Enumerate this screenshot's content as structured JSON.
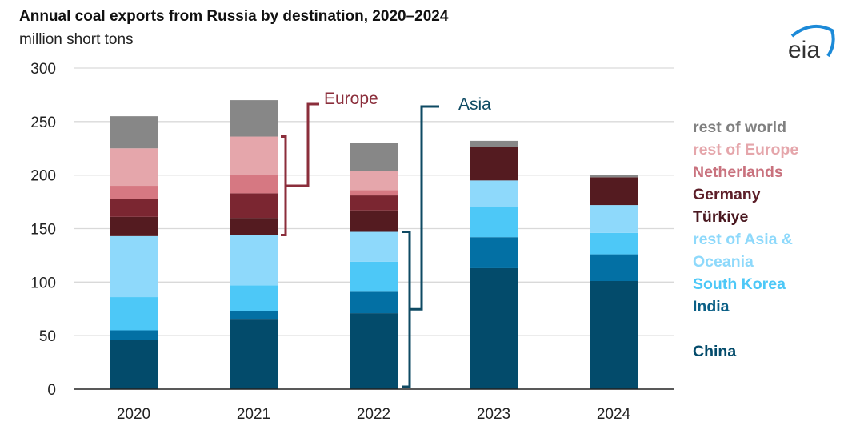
{
  "header": {
    "title": "Annual coal exports from Russia by destination, 2020–2024",
    "subtitle": "million short tons",
    "logo_text": "eia"
  },
  "chart_data": {
    "type": "bar",
    "stacked": true,
    "title": "Annual coal exports from Russia by destination, 2020–2024",
    "ylabel": "million short tons",
    "ylim": [
      0,
      300
    ],
    "yticks": [
      0,
      50,
      100,
      150,
      200,
      250,
      300
    ],
    "grid": true,
    "legend_placement": "right",
    "categories": [
      "2020",
      "2021",
      "2022",
      "2023",
      "2024"
    ],
    "series": [
      {
        "name": "China",
        "color": "#034b6b",
        "values": [
          46,
          65,
          71,
          113,
          101
        ]
      },
      {
        "name": "India",
        "color": "#0370a4",
        "values": [
          9,
          8,
          20,
          29,
          25
        ]
      },
      {
        "name": "South Korea",
        "color": "#4dc8f7",
        "values": [
          31,
          24,
          28,
          28,
          20
        ]
      },
      {
        "name": "rest of Asia & Oceania",
        "color": "#8ed9fb",
        "values": [
          57,
          47,
          28,
          25,
          26
        ]
      },
      {
        "name": "Türkiye",
        "color": "#541b20",
        "values": [
          18,
          16,
          20,
          31,
          26
        ]
      },
      {
        "name": "Germany",
        "color": "#7b2631",
        "values": [
          17,
          23,
          14,
          0,
          0
        ]
      },
      {
        "name": "Netherlands",
        "color": "#d67882",
        "values": [
          12,
          17,
          5,
          0,
          0
        ]
      },
      {
        "name": "rest of Europe",
        "color": "#e5a6ab",
        "values": [
          35,
          36,
          18,
          0,
          0
        ]
      },
      {
        "name": "rest of world",
        "color": "#878787",
        "values": [
          30,
          34,
          26,
          6,
          2
        ]
      }
    ],
    "legend": [
      {
        "label": "rest of world",
        "color": "#808080"
      },
      {
        "label": "rest of Europe",
        "color": "#e5a6ab"
      },
      {
        "label": "Netherlands",
        "color": "#c9727e"
      },
      {
        "label": "Germany",
        "color": "#5c1e28"
      },
      {
        "label": "Türkiye",
        "color": "#4a1820"
      },
      {
        "label": "rest of Asia &",
        "color": "#8ed9fb"
      },
      {
        "label": "Oceania",
        "color": "#8ed9fb"
      },
      {
        "label": "South Korea",
        "color": "#4dc8f7"
      },
      {
        "label": "India",
        "color": "#0a5f86"
      },
      {
        "label": "",
        "color": "#fff"
      },
      {
        "label": "China",
        "color": "#034b6b"
      }
    ],
    "annotations": [
      {
        "text": "Europe",
        "color": "#8b2e3b"
      },
      {
        "text": "Asia",
        "color": "#0e4a63"
      }
    ]
  }
}
